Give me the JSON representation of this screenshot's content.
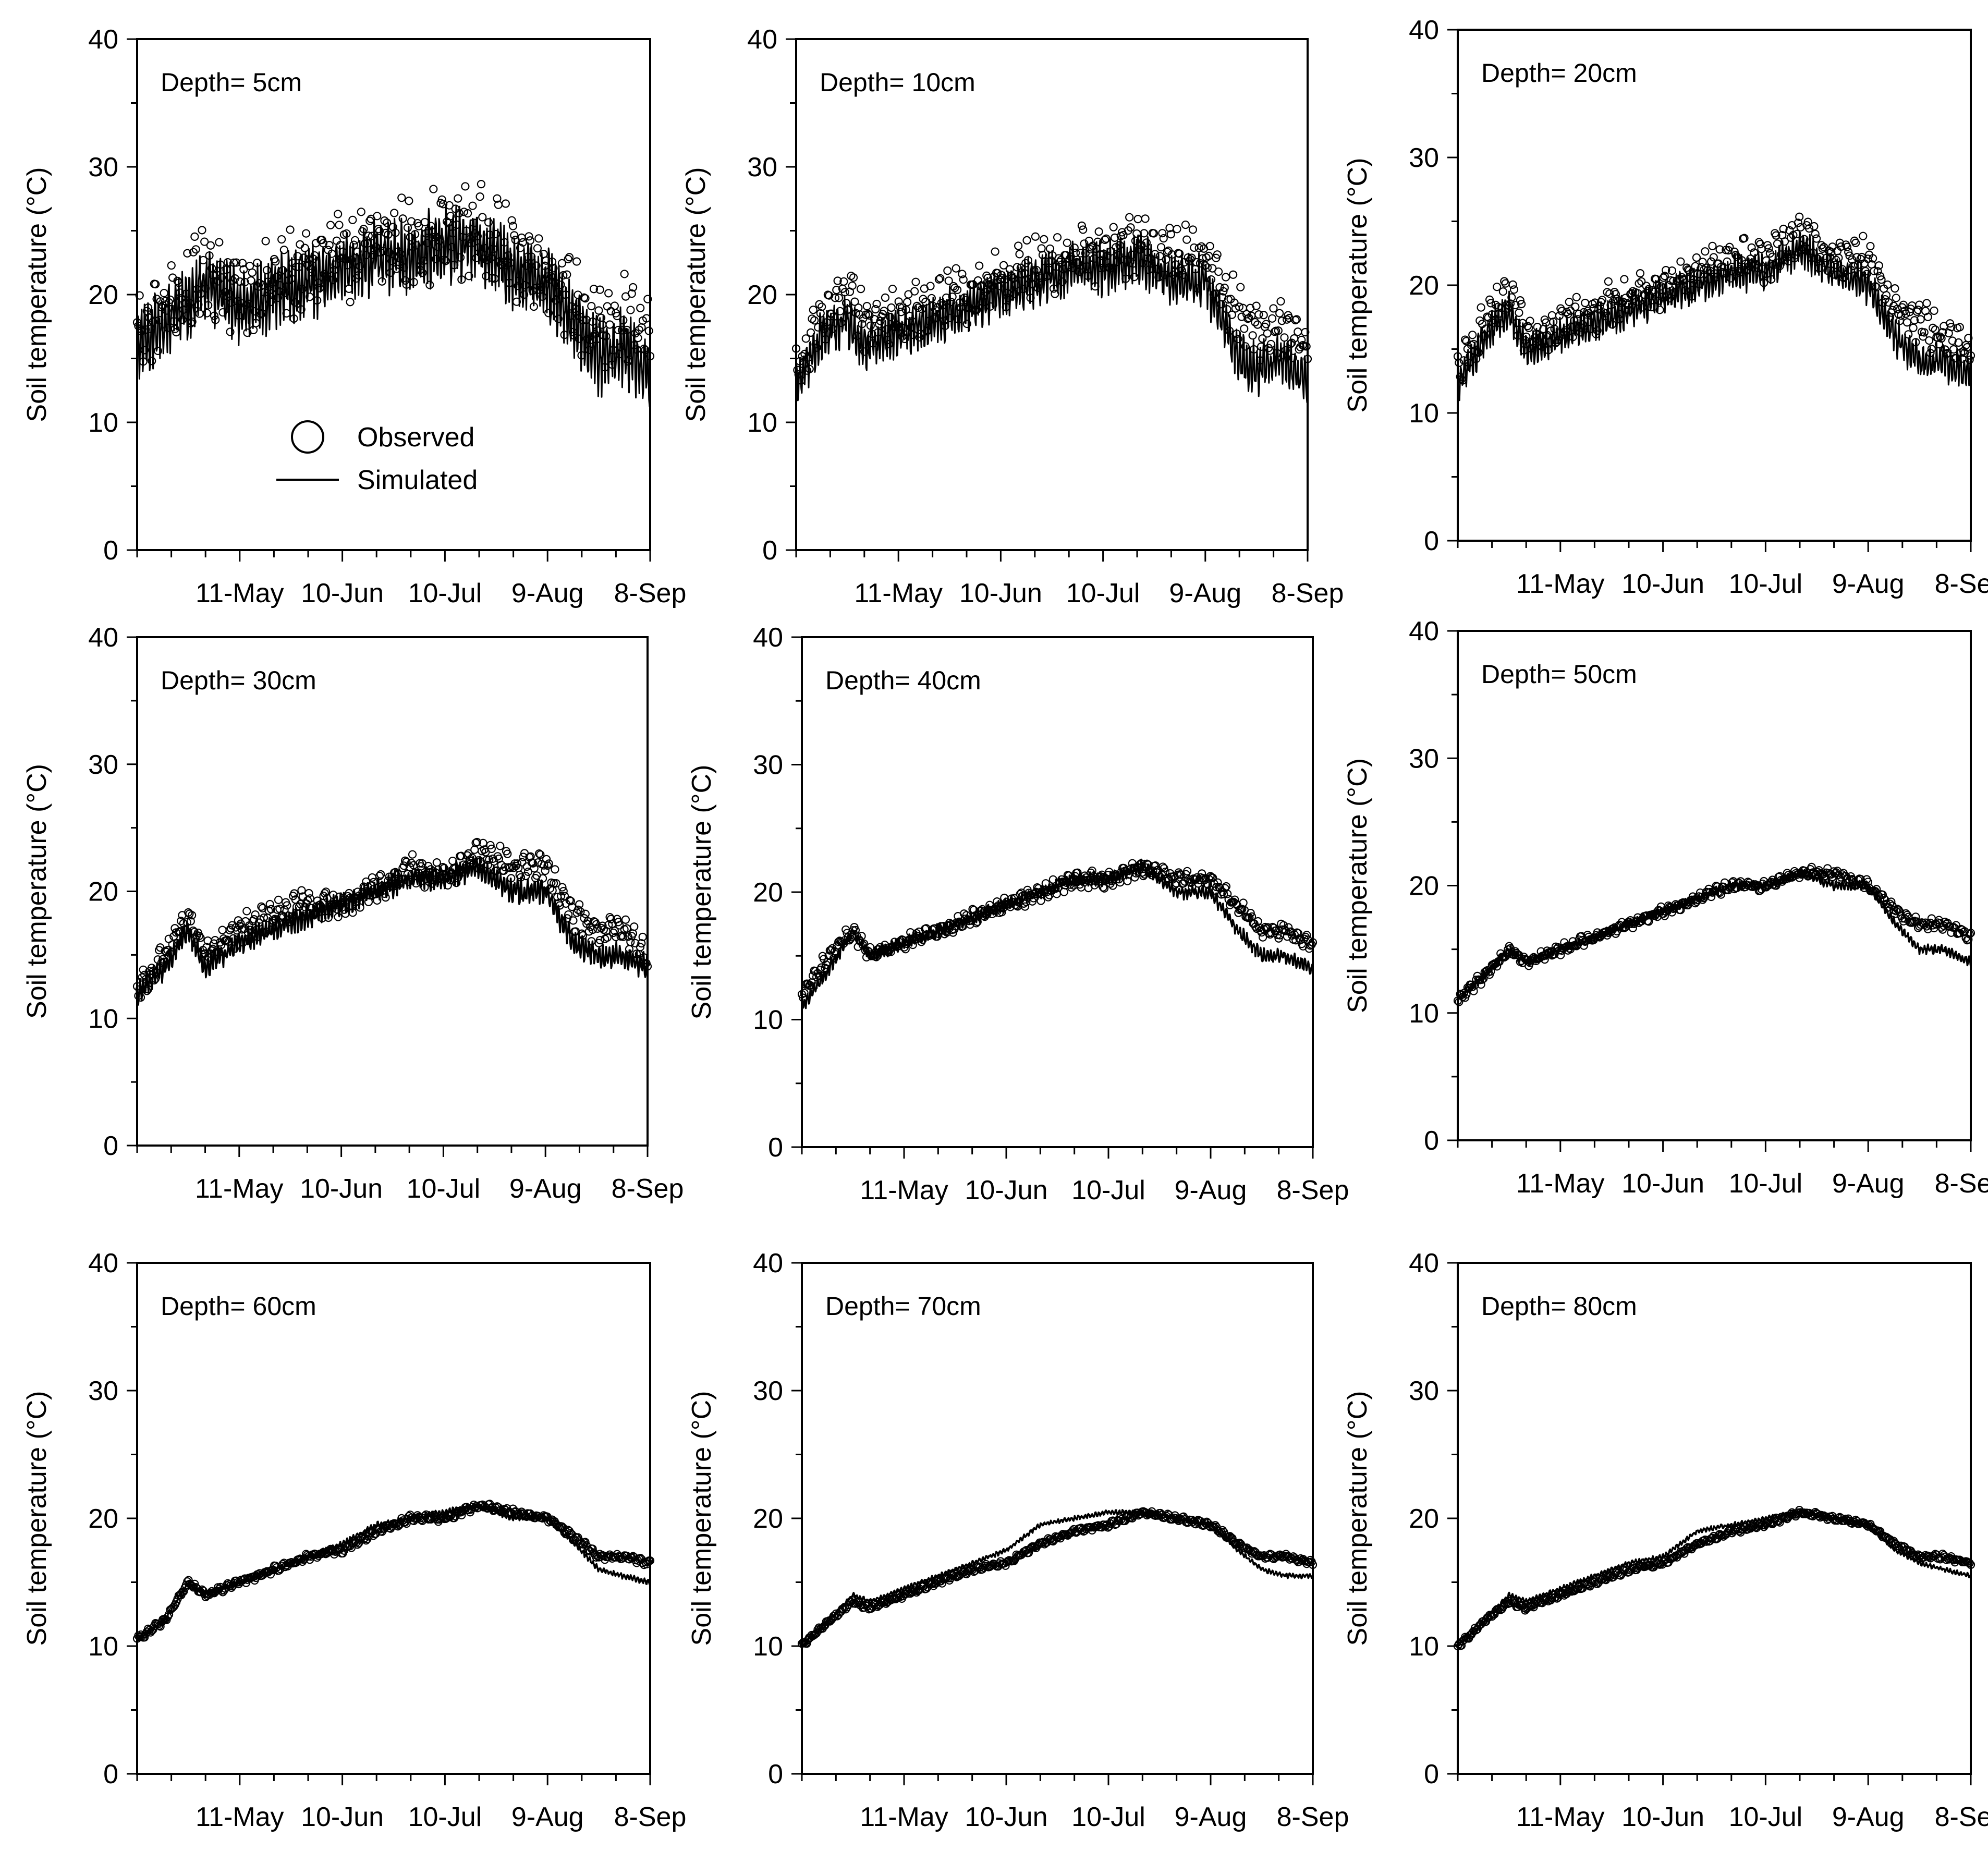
{
  "figure": {
    "ylabel": "Soil temperature (°C)",
    "ylim": [
      0,
      40
    ],
    "yticks": [
      0,
      10,
      20,
      30,
      40
    ],
    "xtick_labels": [
      "11-May",
      "10-Jun",
      "10-Jul",
      "9-Aug",
      "8-Sep"
    ],
    "x_start_day": 0,
    "x_end_day": 150,
    "legend": {
      "observed": "Observed",
      "simulated": "Simulated",
      "panel": 0
    }
  },
  "chart_data": [
    {
      "type": "line+scatter",
      "title": "Depth= 5cm",
      "ylabel": "Soil temperature (°C)",
      "ylim": [
        0,
        40
      ],
      "noise": 3.2,
      "series": [
        {
          "name": "Observed",
          "style": "scatter",
          "x": [
            0,
            8,
            15,
            20,
            30,
            40,
            50,
            60,
            70,
            80,
            90,
            100,
            110,
            120,
            128,
            135,
            142,
            150
          ],
          "values": [
            17,
            19,
            20,
            22,
            20,
            21,
            22,
            23,
            24,
            24,
            25,
            25,
            23,
            22,
            19,
            17,
            18,
            16
          ]
        },
        {
          "name": "Simulated",
          "style": "line",
          "x": [
            0,
            8,
            15,
            20,
            30,
            40,
            50,
            60,
            70,
            80,
            90,
            100,
            110,
            120,
            128,
            135,
            142,
            150
          ],
          "values": [
            16,
            18,
            19,
            21,
            19,
            20,
            21,
            22,
            23,
            23,
            24,
            24,
            22,
            21,
            18,
            15,
            16,
            14
          ]
        }
      ]
    },
    {
      "type": "line+scatter",
      "title": "Depth= 10cm",
      "ylabel": "Soil temperature (°C)",
      "ylim": [
        0,
        40
      ],
      "noise": 2.2,
      "series": [
        {
          "name": "Observed",
          "style": "scatter",
          "x": [
            0,
            8,
            15,
            20,
            30,
            40,
            50,
            60,
            70,
            80,
            90,
            100,
            110,
            120,
            128,
            135,
            142,
            150
          ],
          "values": [
            14,
            18,
            20,
            18,
            18,
            19,
            20,
            21,
            22,
            23,
            23,
            24,
            23,
            23,
            19,
            17,
            17,
            16
          ]
        },
        {
          "name": "Simulated",
          "style": "line",
          "x": [
            0,
            8,
            15,
            20,
            30,
            40,
            50,
            60,
            70,
            80,
            90,
            100,
            110,
            120,
            128,
            135,
            142,
            150
          ],
          "values": [
            13,
            17,
            18,
            16,
            17,
            18,
            19,
            20,
            21,
            22,
            22,
            23,
            21,
            21,
            16,
            14,
            15,
            13
          ]
        }
      ]
    },
    {
      "type": "line+scatter",
      "title": "Depth= 20cm",
      "ylabel": "Soil temperature (°C)",
      "ylim": [
        0,
        40
      ],
      "noise": 1.6,
      "series": [
        {
          "name": "Observed",
          "style": "scatter",
          "x": [
            0,
            8,
            15,
            20,
            30,
            40,
            50,
            60,
            70,
            80,
            90,
            100,
            110,
            120,
            128,
            135,
            142,
            150
          ],
          "values": [
            13,
            17,
            19,
            16,
            17,
            18,
            19,
            20,
            21,
            22,
            22,
            24,
            22,
            22,
            18,
            17,
            16,
            15
          ]
        },
        {
          "name": "Simulated",
          "style": "line",
          "x": [
            0,
            8,
            15,
            20,
            30,
            40,
            50,
            60,
            70,
            80,
            90,
            100,
            110,
            120,
            128,
            135,
            142,
            150
          ],
          "values": [
            12,
            16,
            18,
            15,
            16,
            17,
            18,
            19,
            20,
            21,
            21,
            23,
            21,
            20,
            16,
            14,
            14,
            13
          ]
        }
      ]
    },
    {
      "type": "line+scatter",
      "title": "Depth= 30cm",
      "ylabel": "Soil temperature (°C)",
      "ylim": [
        0,
        40
      ],
      "noise": 1.1,
      "series": [
        {
          "name": "Observed",
          "style": "scatter",
          "x": [
            0,
            8,
            15,
            20,
            30,
            40,
            50,
            60,
            70,
            80,
            90,
            100,
            110,
            120,
            128,
            135,
            142,
            150
          ],
          "values": [
            12,
            15,
            18,
            15,
            17,
            18,
            19,
            19,
            20,
            22,
            21,
            23,
            22,
            22,
            18,
            17,
            17,
            15
          ]
        },
        {
          "name": "Simulated",
          "style": "line",
          "x": [
            0,
            8,
            15,
            20,
            30,
            40,
            50,
            60,
            70,
            80,
            90,
            100,
            110,
            120,
            128,
            135,
            142,
            150
          ],
          "values": [
            12,
            14,
            17,
            14,
            16,
            17,
            18,
            19,
            20,
            21,
            21,
            22,
            20,
            20,
            16,
            15,
            15,
            14
          ]
        }
      ]
    },
    {
      "type": "line+scatter",
      "title": "Depth= 40cm",
      "ylabel": "Soil temperature (°C)",
      "ylim": [
        0,
        40
      ],
      "noise": 0.6,
      "series": [
        {
          "name": "Observed",
          "style": "scatter",
          "x": [
            0,
            8,
            15,
            20,
            30,
            40,
            50,
            60,
            70,
            80,
            90,
            100,
            110,
            120,
            128,
            135,
            142,
            150
          ],
          "values": [
            12,
            15,
            17,
            15,
            16,
            17,
            18,
            19,
            20,
            21,
            21,
            22,
            21,
            21,
            19,
            17,
            17,
            16
          ]
        },
        {
          "name": "Simulated",
          "style": "line",
          "x": [
            0,
            8,
            15,
            20,
            30,
            40,
            50,
            60,
            70,
            80,
            90,
            100,
            110,
            120,
            128,
            135,
            142,
            150
          ],
          "values": [
            11,
            14,
            17,
            15,
            16,
            17,
            18,
            19,
            20,
            21,
            21,
            22,
            20,
            20,
            17,
            15,
            15,
            14
          ]
        }
      ]
    },
    {
      "type": "line+scatter",
      "title": "Depth= 50cm",
      "ylabel": "Soil temperature (°C)",
      "ylim": [
        0,
        40
      ],
      "noise": 0.4,
      "series": [
        {
          "name": "Observed",
          "style": "scatter",
          "x": [
            0,
            8,
            15,
            20,
            30,
            40,
            50,
            60,
            70,
            80,
            90,
            100,
            110,
            120,
            128,
            135,
            142,
            150
          ],
          "values": [
            11,
            13,
            15,
            14,
            15,
            16,
            17,
            18,
            19,
            20,
            20,
            21,
            21,
            20,
            18,
            17,
            17,
            16
          ]
        },
        {
          "name": "Simulated",
          "style": "line",
          "x": [
            0,
            8,
            15,
            20,
            30,
            40,
            50,
            60,
            70,
            80,
            90,
            100,
            110,
            120,
            128,
            135,
            142,
            150
          ],
          "values": [
            11,
            13,
            15,
            14,
            15,
            16,
            17,
            18,
            19,
            20,
            20,
            21,
            20,
            20,
            17,
            15,
            15,
            14
          ]
        }
      ]
    },
    {
      "type": "line+scatter",
      "title": "Depth= 60cm",
      "ylabel": "Soil temperature (°C)",
      "ylim": [
        0,
        40
      ],
      "noise": 0.25,
      "series": [
        {
          "name": "Observed",
          "style": "scatter",
          "x": [
            0,
            8,
            15,
            20,
            30,
            40,
            50,
            60,
            70,
            80,
            90,
            100,
            110,
            120,
            128,
            135,
            142,
            150
          ],
          "values": [
            10.5,
            12,
            15,
            14,
            15,
            16,
            17,
            17.5,
            19,
            20,
            20,
            21,
            20.5,
            20,
            18.5,
            17,
            17,
            16.5
          ]
        },
        {
          "name": "Simulated",
          "style": "line",
          "x": [
            0,
            8,
            15,
            20,
            30,
            40,
            50,
            60,
            70,
            80,
            90,
            100,
            110,
            120,
            128,
            135,
            142,
            150
          ],
          "values": [
            10.5,
            12,
            15,
            14,
            15,
            16,
            17,
            18,
            19.5,
            20,
            20.5,
            21,
            20,
            20,
            18,
            16,
            15.5,
            15
          ]
        }
      ]
    },
    {
      "type": "line+scatter",
      "title": "Depth= 70cm",
      "ylabel": "Soil temperature (°C)",
      "ylim": [
        0,
        40
      ],
      "noise": 0.2,
      "series": [
        {
          "name": "Observed",
          "style": "scatter",
          "x": [
            0,
            8,
            15,
            20,
            30,
            40,
            50,
            60,
            70,
            80,
            90,
            100,
            110,
            120,
            128,
            135,
            142,
            150
          ],
          "values": [
            10,
            12,
            13.5,
            13,
            14,
            15,
            16,
            16.5,
            18,
            19,
            19.5,
            20.5,
            20,
            19.5,
            18,
            17,
            17,
            16.5
          ]
        },
        {
          "name": "Simulated",
          "style": "line",
          "x": [
            0,
            8,
            15,
            20,
            30,
            40,
            50,
            60,
            70,
            80,
            90,
            100,
            110,
            120,
            128,
            135,
            142,
            150
          ],
          "values": [
            10,
            12,
            14,
            13.5,
            14.5,
            15.5,
            16.5,
            17.5,
            19.5,
            20,
            20.5,
            20.5,
            20,
            19.5,
            17.5,
            16,
            15.5,
            15.5
          ]
        }
      ]
    },
    {
      "type": "line+scatter",
      "title": "Depth= 80cm",
      "ylabel": "Soil temperature (°C)",
      "ylim": [
        0,
        40
      ],
      "noise": 0.2,
      "series": [
        {
          "name": "Observed",
          "style": "scatter",
          "x": [
            0,
            8,
            15,
            20,
            30,
            40,
            50,
            60,
            70,
            80,
            90,
            100,
            110,
            120,
            128,
            135,
            142,
            150
          ],
          "values": [
            10,
            12,
            13.5,
            13,
            14,
            15,
            16,
            16.5,
            18,
            19,
            19.5,
            20.5,
            20,
            19.5,
            18,
            17,
            17,
            16.5
          ]
        },
        {
          "name": "Simulated",
          "style": "line",
          "x": [
            0,
            8,
            15,
            20,
            30,
            40,
            50,
            60,
            70,
            80,
            90,
            100,
            110,
            120,
            128,
            135,
            142,
            150
          ],
          "values": [
            10,
            12,
            14,
            13.5,
            14.5,
            15.5,
            16.5,
            17,
            19,
            19.5,
            20,
            20.5,
            20,
            19.5,
            17.5,
            16.5,
            16,
            15.5
          ]
        }
      ]
    }
  ]
}
